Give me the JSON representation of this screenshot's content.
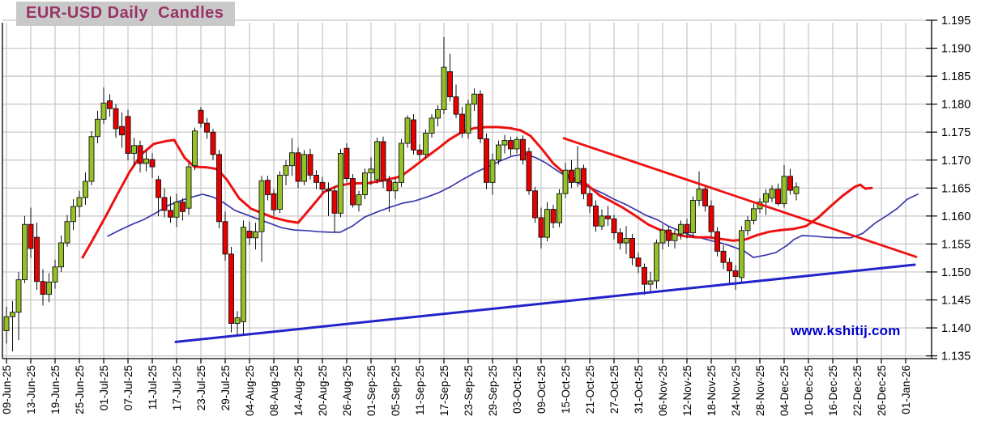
{
  "title": "EUR-USD Daily  Candles",
  "watermark": "www.kshitij.com",
  "colors": {
    "background": "#ffffff",
    "grid": "#c6c6c6",
    "axis": "#000000",
    "label": "#000000",
    "candle_up": "#94c226",
    "candle_down": "#e60000",
    "candle_border": "#111111",
    "ma_red": "#ee1111",
    "ma_blue": "#3939aa",
    "trendline_red": "#ee1111",
    "trendline_blue": "#2323cc",
    "title_bg": "#c9c9c9",
    "title_text": "#993366",
    "watermark_text": "#0000cc"
  },
  "chart_data": {
    "type": "candlestick",
    "title": "EUR-USD Daily Candles",
    "instrument": "EUR-USD",
    "timeframe": "Daily",
    "grid": true,
    "y_axis_side": "right",
    "ylim": [
      1.135,
      1.195
    ],
    "y_tick_step": 0.005,
    "y_ticks": [
      1.195,
      1.19,
      1.185,
      1.18,
      1.175,
      1.17,
      1.165,
      1.16,
      1.155,
      1.15,
      1.145,
      1.14,
      1.135
    ],
    "x_labels": [
      "09-Jun-25",
      "13-Jun-25",
      "19-Jun-25",
      "25-Jun-25",
      "01-Jul-25",
      "07-Jul-25",
      "11-Jul-25",
      "17-Jul-25",
      "23-Jul-25",
      "29-Jul-25",
      "04-Aug-25",
      "08-Aug-25",
      "14-Aug-25",
      "20-Aug-25",
      "26-Aug-25",
      "01-Sep-25",
      "05-Sep-25",
      "11-Sep-25",
      "17-Sep-25",
      "23-Sep-25",
      "29-Sep-25",
      "03-Oct-25",
      "09-Oct-25",
      "15-Oct-25",
      "21-Oct-25",
      "27-Oct-25",
      "31-Oct-25",
      "06-Nov-25",
      "12-Nov-25",
      "18-Nov-25",
      "24-Nov-25",
      "28-Nov-25",
      "04-Dec-25",
      "10-Dec-25",
      "16-Dec-25",
      "22-Dec-25",
      "26-Dec-25",
      "01-Jan-26"
    ],
    "trading_days_per_label": 4,
    "first_candle_date": "09-Jun-25",
    "candles_ohlc": [
      [
        1.1395,
        1.1438,
        1.1372,
        1.142
      ],
      [
        1.142,
        1.1448,
        1.1358,
        1.1428
      ],
      [
        1.1428,
        1.15,
        1.1378,
        1.1486
      ],
      [
        1.1486,
        1.16,
        1.148,
        1.1585
      ],
      [
        1.1585,
        1.1615,
        1.1525,
        1.1542
      ],
      [
        1.1562,
        1.1588,
        1.1468,
        1.1483
      ],
      [
        1.1483,
        1.1505,
        1.144,
        1.146
      ],
      [
        1.146,
        1.1498,
        1.1446,
        1.1482
      ],
      [
        1.1482,
        1.1522,
        1.147,
        1.1509
      ],
      [
        1.1509,
        1.1565,
        1.15,
        1.1552
      ],
      [
        1.1552,
        1.1602,
        1.1545,
        1.159
      ],
      [
        1.159,
        1.163,
        1.1575,
        1.1617
      ],
      [
        1.1617,
        1.1645,
        1.1598,
        1.1633
      ],
      [
        1.1633,
        1.1678,
        1.162,
        1.1662
      ],
      [
        1.1662,
        1.1752,
        1.1655,
        1.1742
      ],
      [
        1.1742,
        1.1788,
        1.173,
        1.1773
      ],
      [
        1.1773,
        1.183,
        1.1765,
        1.1802
      ],
      [
        1.1806,
        1.1818,
        1.1778,
        1.1792
      ],
      [
        1.1792,
        1.18,
        1.174,
        1.1756
      ],
      [
        1.176,
        1.1785,
        1.1722,
        1.1745
      ],
      [
        1.1778,
        1.179,
        1.17,
        1.1712
      ],
      [
        1.1712,
        1.174,
        1.169,
        1.1726
      ],
      [
        1.1726,
        1.1735,
        1.1678,
        1.1694
      ],
      [
        1.1694,
        1.1718,
        1.168,
        1.1702
      ],
      [
        1.1701,
        1.1712,
        1.1668,
        1.1688
      ],
      [
        1.1665,
        1.1672,
        1.16,
        1.1633
      ],
      [
        1.1633,
        1.165,
        1.1598,
        1.161
      ],
      [
        1.161,
        1.1635,
        1.1588,
        1.1598
      ],
      [
        1.1598,
        1.164,
        1.158,
        1.1625
      ],
      [
        1.1625,
        1.1632,
        1.1592,
        1.1608
      ],
      [
        1.1614,
        1.1695,
        1.1602,
        1.1688
      ],
      [
        1.169,
        1.1758,
        1.1682,
        1.1752
      ],
      [
        1.1789,
        1.1795,
        1.1758,
        1.1766
      ],
      [
        1.1766,
        1.1775,
        1.1738,
        1.175
      ],
      [
        1.175,
        1.1756,
        1.17,
        1.171
      ],
      [
        1.171,
        1.1718,
        1.1578,
        1.159
      ],
      [
        1.159,
        1.1608,
        1.152,
        1.1532
      ],
      [
        1.1532,
        1.1545,
        1.1392,
        1.1408
      ],
      [
        1.1408,
        1.143,
        1.1385,
        1.1418
      ],
      [
        1.1411,
        1.1592,
        1.1388,
        1.158
      ],
      [
        1.1573,
        1.159,
        1.1548,
        1.1561
      ],
      [
        1.1561,
        1.1588,
        1.154,
        1.1572
      ],
      [
        1.1572,
        1.1672,
        1.1518,
        1.1663
      ],
      [
        1.1664,
        1.1672,
        1.1628,
        1.1638
      ],
      [
        1.164,
        1.1648,
        1.16,
        1.1611
      ],
      [
        1.1612,
        1.168,
        1.1605,
        1.1673
      ],
      [
        1.1673,
        1.17,
        1.1655,
        1.169
      ],
      [
        1.169,
        1.1739,
        1.1672,
        1.1713
      ],
      [
        1.1713,
        1.1722,
        1.165,
        1.1662
      ],
      [
        1.1662,
        1.1718,
        1.1655,
        1.171
      ],
      [
        1.171,
        1.172,
        1.1665,
        1.1673
      ],
      [
        1.1673,
        1.1682,
        1.1648,
        1.166
      ],
      [
        1.166,
        1.167,
        1.164,
        1.1648
      ],
      [
        1.1648,
        1.166,
        1.16,
        1.1645
      ],
      [
        1.1645,
        1.1652,
        1.1571,
        1.1605
      ],
      [
        1.1605,
        1.172,
        1.1598,
        1.1712
      ],
      [
        1.1721,
        1.173,
        1.166,
        1.1667
      ],
      [
        1.1667,
        1.1675,
        1.1615,
        1.162
      ],
      [
        1.162,
        1.1645,
        1.1608,
        1.1638
      ],
      [
        1.1638,
        1.1685,
        1.163,
        1.1677
      ],
      [
        1.1677,
        1.1705,
        1.1655,
        1.1684
      ],
      [
        1.1665,
        1.174,
        1.1658,
        1.1733
      ],
      [
        1.1733,
        1.1742,
        1.165,
        1.1663
      ],
      [
        1.1663,
        1.1672,
        1.1607,
        1.1645
      ],
      [
        1.1645,
        1.1668,
        1.163,
        1.166
      ],
      [
        1.166,
        1.1738,
        1.1652,
        1.173
      ],
      [
        1.173,
        1.178,
        1.1722,
        1.1775
      ],
      [
        1.1772,
        1.1782,
        1.171,
        1.1718
      ],
      [
        1.1718,
        1.1728,
        1.17,
        1.171
      ],
      [
        1.171,
        1.1755,
        1.1702,
        1.1748
      ],
      [
        1.1748,
        1.1782,
        1.174,
        1.1775
      ],
      [
        1.1775,
        1.1798,
        1.176,
        1.179
      ],
      [
        1.179,
        1.192,
        1.1782,
        1.1866
      ],
      [
        1.1858,
        1.189,
        1.1805,
        1.1813
      ],
      [
        1.1813,
        1.1835,
        1.1775,
        1.1782
      ],
      [
        1.1782,
        1.1795,
        1.174,
        1.1748
      ],
      [
        1.1748,
        1.1808,
        1.1738,
        1.18
      ],
      [
        1.18,
        1.1828,
        1.1788,
        1.1818
      ],
      [
        1.1818,
        1.1825,
        1.173,
        1.1738
      ],
      [
        1.1738,
        1.1748,
        1.1648,
        1.166
      ],
      [
        1.166,
        1.1712,
        1.1638,
        1.17
      ],
      [
        1.17,
        1.1735,
        1.1692,
        1.1727
      ],
      [
        1.1727,
        1.1745,
        1.1712,
        1.1735
      ],
      [
        1.1735,
        1.1742,
        1.1708,
        1.172
      ],
      [
        1.172,
        1.1742,
        1.1712,
        1.1737
      ],
      [
        1.1737,
        1.1744,
        1.1692,
        1.17
      ],
      [
        1.1715,
        1.1722,
        1.1638,
        1.1645
      ],
      [
        1.1645,
        1.1652,
        1.1588,
        1.1597
      ],
      [
        1.1597,
        1.1615,
        1.1542,
        1.1562
      ],
      [
        1.1562,
        1.1625,
        1.1555,
        1.1612
      ],
      [
        1.1612,
        1.162,
        1.1578,
        1.1588
      ],
      [
        1.1588,
        1.1648,
        1.158,
        1.164
      ],
      [
        1.164,
        1.1695,
        1.1632,
        1.1682
      ],
      [
        1.1682,
        1.17,
        1.165,
        1.166
      ],
      [
        1.166,
        1.1725,
        1.1652,
        1.1685
      ],
      [
        1.1685,
        1.1692,
        1.163,
        1.164
      ],
      [
        1.164,
        1.165,
        1.1605,
        1.1618
      ],
      [
        1.1618,
        1.1628,
        1.1572,
        1.1582
      ],
      [
        1.1582,
        1.1612,
        1.1575,
        1.16
      ],
      [
        1.16,
        1.1618,
        1.1582,
        1.1595
      ],
      [
        1.1595,
        1.1602,
        1.1558,
        1.157
      ],
      [
        1.157,
        1.1578,
        1.154,
        1.1552
      ],
      [
        1.1552,
        1.1582,
        1.1532,
        1.156
      ],
      [
        1.156,
        1.1568,
        1.1512,
        1.1525
      ],
      [
        1.1525,
        1.1535,
        1.1498,
        1.151
      ],
      [
        1.1508,
        1.1515,
        1.1459,
        1.1478
      ],
      [
        1.1478,
        1.15,
        1.1462,
        1.1484
      ],
      [
        1.1484,
        1.1558,
        1.147,
        1.1552
      ],
      [
        1.1552,
        1.1585,
        1.154,
        1.1575
      ],
      [
        1.1575,
        1.1582,
        1.1545,
        1.1556
      ],
      [
        1.1556,
        1.1575,
        1.1542,
        1.1568
      ],
      [
        1.1568,
        1.1592,
        1.1558,
        1.1585
      ],
      [
        1.1585,
        1.1595,
        1.156,
        1.157
      ],
      [
        1.157,
        1.1635,
        1.1562,
        1.1628
      ],
      [
        1.1628,
        1.168,
        1.1618,
        1.1648
      ],
      [
        1.1648,
        1.1655,
        1.1608,
        1.1618
      ],
      [
        1.1618,
        1.1628,
        1.1562,
        1.1572
      ],
      [
        1.1572,
        1.158,
        1.1528,
        1.1537
      ],
      [
        1.1537,
        1.1548,
        1.1505,
        1.1517
      ],
      [
        1.1517,
        1.1525,
        1.1478,
        1.1502
      ],
      [
        1.1502,
        1.1512,
        1.1468,
        1.1492
      ],
      [
        1.149,
        1.1582,
        1.1482,
        1.1574
      ],
      [
        1.1574,
        1.16,
        1.1565,
        1.1592
      ],
      [
        1.1592,
        1.1622,
        1.1585,
        1.1613
      ],
      [
        1.1613,
        1.1632,
        1.1605,
        1.1625
      ],
      [
        1.1625,
        1.1648,
        1.1602,
        1.164
      ],
      [
        1.1632,
        1.1655,
        1.1625,
        1.1648
      ],
      [
        1.1648,
        1.1658,
        1.1618,
        1.1622
      ],
      [
        1.1622,
        1.1691,
        1.1615,
        1.1671
      ],
      [
        1.1671,
        1.1684,
        1.1638,
        1.1646
      ],
      [
        1.164,
        1.166,
        1.1628,
        1.1652
      ]
    ],
    "ma_red_x_price": [
      [
        102,
        1.1526
      ],
      [
        115,
        1.1559
      ],
      [
        130,
        1.1598
      ],
      [
        145,
        1.1639
      ],
      [
        160,
        1.1679
      ],
      [
        175,
        1.1711
      ],
      [
        190,
        1.1729
      ],
      [
        205,
        1.1734
      ],
      [
        215,
        1.1736
      ],
      [
        228,
        1.1704
      ],
      [
        240,
        1.1688
      ],
      [
        255,
        1.1687
      ],
      [
        268,
        1.1684
      ],
      [
        280,
        1.1665
      ],
      [
        295,
        1.1632
      ],
      [
        310,
        1.1613
      ],
      [
        322,
        1.1606
      ],
      [
        338,
        1.1597
      ],
      [
        355,
        1.1591
      ],
      [
        368,
        1.1588
      ],
      [
        385,
        1.1617
      ],
      [
        400,
        1.1643
      ],
      [
        415,
        1.1653
      ],
      [
        432,
        1.1658
      ],
      [
        455,
        1.1659
      ],
      [
        478,
        1.1665
      ],
      [
        495,
        1.1671
      ],
      [
        510,
        1.1687
      ],
      [
        525,
        1.1704
      ],
      [
        540,
        1.172
      ],
      [
        555,
        1.1737
      ],
      [
        570,
        1.175
      ],
      [
        585,
        1.1757
      ],
      [
        600,
        1.1759
      ],
      [
        615,
        1.1759
      ],
      [
        630,
        1.1757
      ],
      [
        643,
        1.1753
      ],
      [
        655,
        1.1743
      ],
      [
        670,
        1.1718
      ],
      [
        683,
        1.1694
      ],
      [
        697,
        1.1676
      ],
      [
        710,
        1.1666
      ],
      [
        725,
        1.1656
      ],
      [
        740,
        1.1637
      ],
      [
        755,
        1.1626
      ],
      [
        770,
        1.1614
      ],
      [
        785,
        1.16
      ],
      [
        800,
        1.1585
      ],
      [
        815,
        1.1575
      ],
      [
        830,
        1.1568
      ],
      [
        845,
        1.1564
      ],
      [
        860,
        1.1562
      ],
      [
        875,
        1.1562
      ],
      [
        890,
        1.1559
      ],
      [
        905,
        1.1556
      ],
      [
        920,
        1.1558
      ],
      [
        935,
        1.1566
      ],
      [
        950,
        1.1572
      ],
      [
        965,
        1.1575
      ],
      [
        980,
        1.1577
      ],
      [
        995,
        1.1582
      ],
      [
        1010,
        1.1597
      ],
      [
        1025,
        1.1617
      ],
      [
        1040,
        1.1636
      ],
      [
        1055,
        1.1652
      ],
      [
        1062,
        1.1656
      ],
      [
        1068,
        1.1649
      ],
      [
        1076,
        1.165
      ]
    ],
    "ma_blue_x_price": [
      [
        133,
        1.1564
      ],
      [
        148,
        1.1575
      ],
      [
        163,
        1.1585
      ],
      [
        178,
        1.1594
      ],
      [
        193,
        1.1606
      ],
      [
        208,
        1.1619
      ],
      [
        222,
        1.1627
      ],
      [
        237,
        1.1634
      ],
      [
        250,
        1.1639
      ],
      [
        263,
        1.1634
      ],
      [
        277,
        1.1623
      ],
      [
        290,
        1.161
      ],
      [
        303,
        1.1603
      ],
      [
        318,
        1.1595
      ],
      [
        333,
        1.1587
      ],
      [
        348,
        1.1579
      ],
      [
        363,
        1.1575
      ],
      [
        378,
        1.1574
      ],
      [
        393,
        1.1572
      ],
      [
        408,
        1.1571
      ],
      [
        420,
        1.1571
      ],
      [
        435,
        1.1582
      ],
      [
        450,
        1.1598
      ],
      [
        467,
        1.1608
      ],
      [
        482,
        1.1616
      ],
      [
        497,
        1.1623
      ],
      [
        512,
        1.1627
      ],
      [
        527,
        1.1634
      ],
      [
        542,
        1.1642
      ],
      [
        557,
        1.1653
      ],
      [
        572,
        1.1666
      ],
      [
        587,
        1.1678
      ],
      [
        602,
        1.1688
      ],
      [
        617,
        1.1698
      ],
      [
        632,
        1.1707
      ],
      [
        648,
        1.1711
      ],
      [
        662,
        1.1704
      ],
      [
        675,
        1.1694
      ],
      [
        688,
        1.1681
      ],
      [
        702,
        1.1668
      ],
      [
        715,
        1.1658
      ],
      [
        730,
        1.165
      ],
      [
        745,
        1.164
      ],
      [
        758,
        1.163
      ],
      [
        772,
        1.1621
      ],
      [
        785,
        1.1611
      ],
      [
        798,
        1.1601
      ],
      [
        812,
        1.1593
      ],
      [
        825,
        1.1582
      ],
      [
        838,
        1.1574
      ],
      [
        852,
        1.1566
      ],
      [
        865,
        1.1561
      ],
      [
        878,
        1.1556
      ],
      [
        892,
        1.1551
      ],
      [
        905,
        1.1545
      ],
      [
        918,
        1.1538
      ],
      [
        930,
        1.1526
      ],
      [
        945,
        1.153
      ],
      [
        958,
        1.1535
      ],
      [
        972,
        1.1548
      ],
      [
        980,
        1.1558
      ],
      [
        990,
        1.1565
      ],
      [
        1005,
        1.1564
      ],
      [
        1020,
        1.1562
      ],
      [
        1035,
        1.1561
      ],
      [
        1050,
        1.1561
      ],
      [
        1065,
        1.1569
      ],
      [
        1080,
        1.1587
      ],
      [
        1095,
        1.1601
      ],
      [
        1108,
        1.1614
      ],
      [
        1120,
        1.163
      ],
      [
        1133,
        1.1639
      ]
    ],
    "trendlines": {
      "resistance_red": [
        [
          696,
          1.1739
        ],
        [
          1131,
          1.1527
        ]
      ],
      "support_blue": [
        [
          217,
          1.1375
        ],
        [
          1129,
          1.1513
        ]
      ]
    }
  }
}
